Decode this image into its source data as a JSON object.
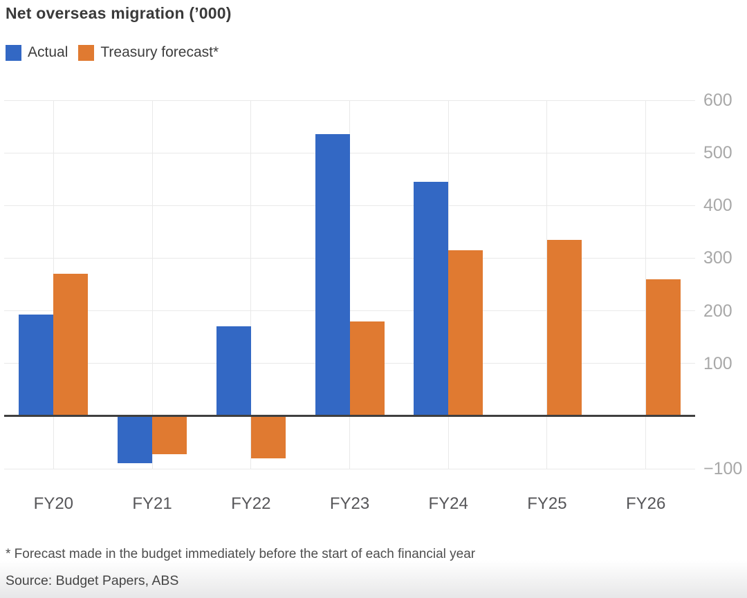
{
  "title": "Net overseas migration (’000)",
  "legend": [
    {
      "label": "Actual",
      "color": "#3368c4"
    },
    {
      "label": "Treasury forecast*",
      "color": "#e07a31"
    }
  ],
  "footnote": "* Forecast made in the budget immediately before the start of each financial year",
  "source": "Source: Budget Papers, ABS",
  "colors": {
    "actual": "#3368c4",
    "forecast": "#e07a31",
    "gridline": "#e9e9e9",
    "zero_axis": "#3f3f3f",
    "y_tick_text": "#a8a8a8",
    "x_tick_text": "#565659"
  },
  "chart_data": {
    "type": "bar",
    "title": "Net overseas migration ('000)",
    "categories": [
      "FY20",
      "FY21",
      "FY22",
      "FY23",
      "FY24",
      "FY25",
      "FY26"
    ],
    "series": [
      {
        "name": "Actual",
        "color": "#3368c4",
        "values": [
          193,
          -90,
          170,
          536,
          445,
          null,
          null
        ]
      },
      {
        "name": "Treasury forecast*",
        "color": "#e07a31",
        "values": [
          271,
          -72,
          -80,
          180,
          315,
          335,
          260
        ]
      }
    ],
    "ylim": [
      -100,
      600
    ],
    "yticks": [
      {
        "v": 600,
        "label": "600"
      },
      {
        "v": 500,
        "label": "500"
      },
      {
        "v": 400,
        "label": "400"
      },
      {
        "v": 300,
        "label": "300"
      },
      {
        "v": 200,
        "label": "200"
      },
      {
        "v": 100,
        "label": "100"
      },
      {
        "v": -100,
        "label": "−100"
      }
    ],
    "grid": true,
    "legend_position": "top-left",
    "y_axis_side": "right",
    "xlabel": "",
    "ylabel": ""
  }
}
